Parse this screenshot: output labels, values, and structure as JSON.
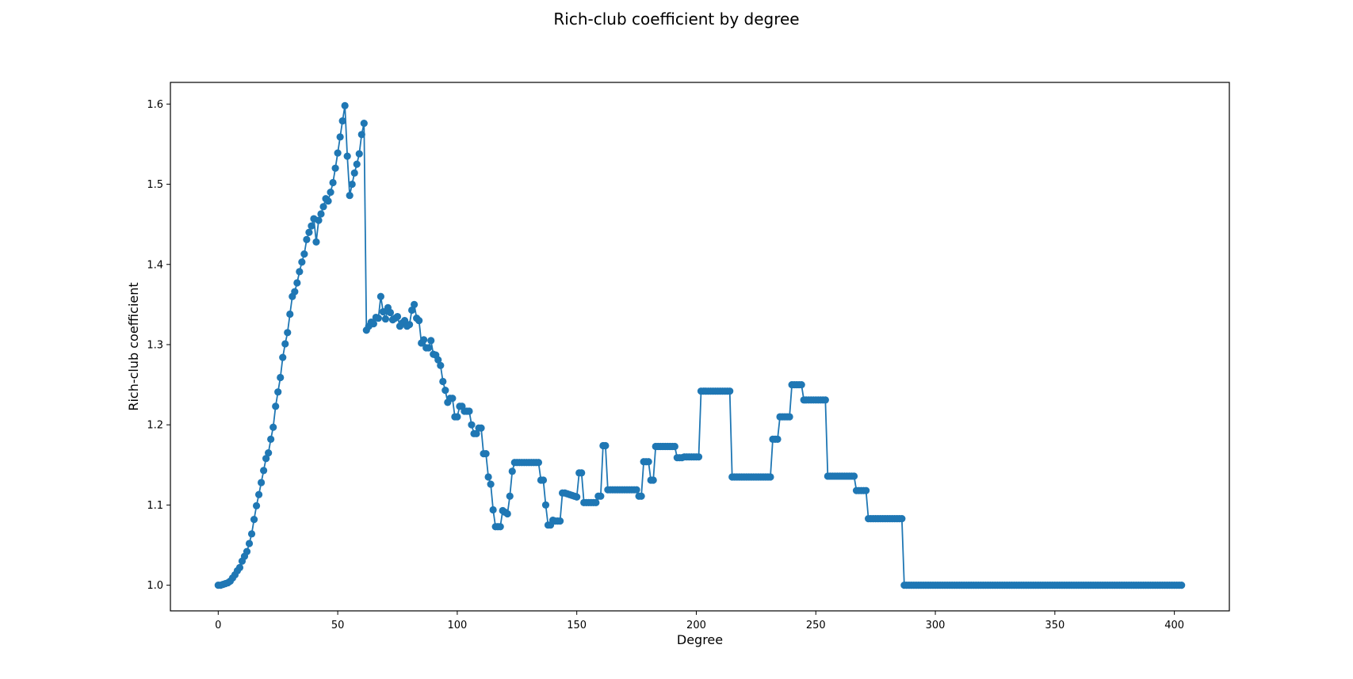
{
  "chart_data": {
    "type": "line",
    "title": "Rich-club coefficient by degree",
    "xlabel": "Degree",
    "ylabel": "Rich-club coefficient",
    "xlim": [
      -20,
      423
    ],
    "ylim": [
      0.968,
      1.627
    ],
    "xticks": [
      0,
      50,
      100,
      150,
      200,
      250,
      300,
      350,
      400
    ],
    "yticks": [
      1.0,
      1.1,
      1.2,
      1.3,
      1.4,
      1.5,
      1.6
    ],
    "xtick_labels": [
      "0",
      "50",
      "100",
      "150",
      "200",
      "250",
      "300",
      "350",
      "400"
    ],
    "ytick_labels": [
      "1.0",
      "1.1",
      "1.2",
      "1.3",
      "1.4",
      "1.5",
      "1.6"
    ],
    "grid": false,
    "legend": null,
    "marker": "circle",
    "color": "#1f77b4",
    "segments": [
      {
        "x": [
          0,
          1,
          2,
          3,
          4,
          5,
          6,
          7,
          8,
          9,
          10,
          11,
          12,
          13,
          14,
          15,
          16,
          17,
          18,
          19,
          20,
          21,
          22,
          23,
          24,
          25,
          26,
          27,
          28,
          29,
          30,
          31,
          32,
          33,
          34,
          35,
          36,
          37,
          38,
          39,
          40,
          41,
          42,
          43,
          44,
          45,
          46,
          47,
          48,
          49,
          50,
          51,
          52,
          53,
          54,
          55,
          56,
          57,
          58,
          59,
          60,
          61,
          62,
          63,
          64,
          65,
          66,
          67,
          68,
          69,
          70,
          71,
          72,
          73,
          74,
          75,
          76,
          77,
          78,
          79,
          80,
          81,
          82,
          83,
          84,
          85,
          86,
          87,
          88,
          89,
          90,
          91,
          92,
          93,
          94,
          95,
          96,
          97,
          98,
          99,
          100,
          101,
          102,
          103,
          104,
          105,
          106,
          107,
          108,
          109,
          110,
          111,
          112,
          113,
          114,
          115,
          116,
          117,
          118,
          119,
          120,
          121,
          122,
          123,
          124,
          125
        ],
        "y": [
          1.0,
          1.0,
          1.001,
          1.002,
          1.003,
          1.005,
          1.009,
          1.013,
          1.018,
          1.022,
          1.03,
          1.036,
          1.042,
          1.052,
          1.064,
          1.082,
          1.099,
          1.113,
          1.128,
          1.143,
          1.158,
          1.165,
          1.182,
          1.197,
          1.223,
          1.241,
          1.259,
          1.284,
          1.301,
          1.315,
          1.338,
          1.36,
          1.366,
          1.377,
          1.391,
          1.403,
          1.413,
          1.431,
          1.44,
          1.448,
          1.457,
          1.428,
          1.455,
          1.463,
          1.472,
          1.482,
          1.479,
          1.49,
          1.502,
          1.52,
          1.539,
          1.559,
          1.579,
          1.598,
          1.535,
          1.486,
          1.5,
          1.514,
          1.525,
          1.538,
          1.562,
          1.576,
          1.318,
          1.323,
          1.328,
          1.326,
          1.334,
          1.333,
          1.36,
          1.341,
          1.332,
          1.346,
          1.34,
          1.331,
          1.333,
          1.335,
          1.323,
          1.327,
          1.33,
          1.323,
          1.325,
          1.343,
          1.35,
          1.333,
          1.33,
          1.302,
          1.306,
          1.296,
          1.296,
          1.305,
          1.288,
          1.287,
          1.281,
          1.274,
          1.254,
          1.243,
          1.228,
          1.233,
          1.233,
          1.21,
          1.21,
          1.223,
          1.223,
          1.217,
          1.217,
          1.217,
          1.2,
          1.189,
          1.189,
          1.196,
          1.196,
          1.164,
          1.164,
          1.135,
          1.126,
          1.094,
          1.073,
          1.073,
          1.073,
          1.093,
          1.091,
          1.089,
          1.111,
          1.142,
          1.153,
          1.153
        ]
      },
      {
        "x": [
          126,
          134,
          135,
          136,
          137,
          138,
          139,
          140,
          141,
          142,
          143,
          144,
          145,
          150,
          151,
          152,
          153,
          158,
          159,
          160,
          161,
          162,
          163,
          175,
          176,
          177,
          178,
          179,
          180,
          181,
          182,
          183,
          184,
          191,
          192,
          193,
          194,
          195,
          200,
          201,
          202,
          214,
          215,
          231,
          232,
          234,
          235,
          239,
          240,
          244,
          245,
          254,
          255,
          266,
          267,
          271,
          272,
          286,
          287,
          403
        ],
        "y": [
          1.153,
          1.153,
          1.131,
          1.131,
          1.1,
          1.075,
          1.075,
          1.081,
          1.08,
          1.08,
          1.08,
          1.115,
          1.115,
          1.11,
          1.14,
          1.14,
          1.103,
          1.103,
          1.111,
          1.111,
          1.174,
          1.174,
          1.119,
          1.119,
          1.111,
          1.111,
          1.154,
          1.154,
          1.154,
          1.131,
          1.131,
          1.173,
          1.173,
          1.173,
          1.159,
          1.159,
          1.159,
          1.16,
          1.16,
          1.16,
          1.242,
          1.242,
          1.135,
          1.135,
          1.182,
          1.182,
          1.21,
          1.21,
          1.25,
          1.25,
          1.231,
          1.231,
          1.136,
          1.136,
          1.118,
          1.118,
          1.083,
          1.083,
          1.0,
          1.0
        ]
      }
    ]
  }
}
